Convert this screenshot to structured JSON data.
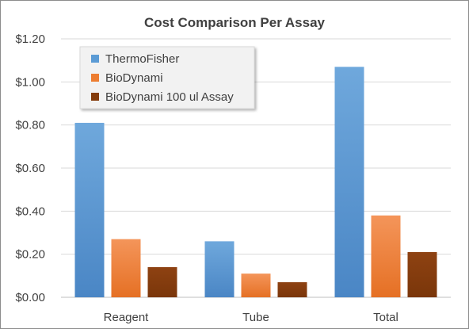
{
  "chart_data": {
    "type": "bar",
    "title": "Cost Comparison Per Assay",
    "categories": [
      "Reagent",
      "Tube",
      "Total"
    ],
    "series": [
      {
        "name": "ThermoFisher",
        "values": [
          0.81,
          0.26,
          1.07
        ],
        "color": "#5b9bd5"
      },
      {
        "name": "BioDynami",
        "values": [
          0.27,
          0.11,
          0.38
        ],
        "color": "#ed7d31"
      },
      {
        "name": "BioDynami 100 ul Assay",
        "values": [
          0.14,
          0.07,
          0.21
        ],
        "color": "#843c0c"
      }
    ],
    "ylim": [
      0,
      1.2
    ],
    "yticks": [
      "$0.00",
      "$0.20",
      "$0.40",
      "$0.60",
      "$0.80",
      "$1.00",
      "$1.20"
    ],
    "ytick_values": [
      0,
      0.2,
      0.4,
      0.6,
      0.8,
      1.0,
      1.2
    ],
    "xlabel": "",
    "ylabel": "",
    "grid": true,
    "legend_position": "top-left"
  }
}
